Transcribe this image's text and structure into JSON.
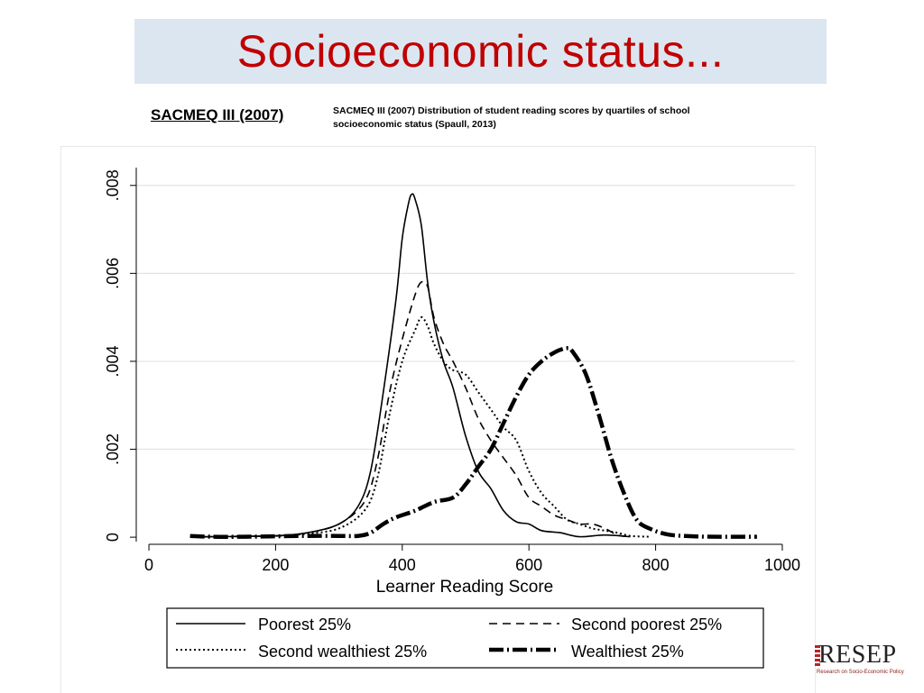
{
  "slide": {
    "title": "Socioeconomic status...",
    "subtitle": "SACMEQ III (2007)",
    "caption": "SACMEQ III (2007) Distribution of student reading scores by quartiles of school socioeconomic status (Spaull, 2013)"
  },
  "logo": {
    "text": "RESEP",
    "tagline": "Research on Socio-Economic Policy"
  },
  "chart_data": {
    "type": "line",
    "title": "",
    "xlabel": "Learner Reading Score",
    "ylabel": "",
    "xlim": [
      -20,
      1020
    ],
    "ylim": [
      -0.0001,
      0.0082
    ],
    "x_ticks": [
      0,
      200,
      400,
      600,
      800,
      1000
    ],
    "x_tick_labels": [
      "0",
      "200",
      "400",
      "600",
      "800",
      "1000"
    ],
    "y_ticks": [
      0,
      0.002,
      0.004,
      0.006,
      0.008
    ],
    "y_tick_labels": [
      "0",
      ".002",
      ".004",
      ".006",
      ".008"
    ],
    "grid": true,
    "legend_position": "bottom",
    "series": [
      {
        "name": "Poorest 25%",
        "style": "solid",
        "points": [
          [
            65,
            1e-05
          ],
          [
            100,
            1e-05
          ],
          [
            150,
            2e-05
          ],
          [
            200,
            3e-05
          ],
          [
            250,
            0.0001
          ],
          [
            300,
            0.0003
          ],
          [
            330,
            0.0007
          ],
          [
            350,
            0.0015
          ],
          [
            370,
            0.0033
          ],
          [
            390,
            0.0054
          ],
          [
            400,
            0.0068
          ],
          [
            410,
            0.0076
          ],
          [
            415,
            0.0078
          ],
          [
            420,
            0.0077
          ],
          [
            430,
            0.0071
          ],
          [
            440,
            0.0058
          ],
          [
            450,
            0.0049
          ],
          [
            465,
            0.004
          ],
          [
            480,
            0.0034
          ],
          [
            500,
            0.0023
          ],
          [
            520,
            0.0015
          ],
          [
            540,
            0.0011
          ],
          [
            560,
            0.0006
          ],
          [
            580,
            0.00035
          ],
          [
            600,
            0.0003
          ],
          [
            620,
            0.00015
          ],
          [
            650,
            0.0001
          ],
          [
            680,
            1e-05
          ],
          [
            720,
            5e-05
          ],
          [
            760,
            1e-05
          ]
        ]
      },
      {
        "name": "Second poorest 25%",
        "style": "dashed",
        "points": [
          [
            65,
            1e-05
          ],
          [
            100,
            1e-05
          ],
          [
            150,
            2e-05
          ],
          [
            200,
            3e-05
          ],
          [
            250,
            0.0001
          ],
          [
            300,
            0.0003
          ],
          [
            340,
            0.0008
          ],
          [
            360,
            0.0017
          ],
          [
            380,
            0.0033
          ],
          [
            400,
            0.0045
          ],
          [
            420,
            0.0055
          ],
          [
            430,
            0.0058
          ],
          [
            440,
            0.0057
          ],
          [
            450,
            0.005
          ],
          [
            465,
            0.0044
          ],
          [
            480,
            0.004
          ],
          [
            500,
            0.0034
          ],
          [
            520,
            0.0027
          ],
          [
            540,
            0.0022
          ],
          [
            560,
            0.0018
          ],
          [
            580,
            0.0014
          ],
          [
            600,
            0.0009
          ],
          [
            620,
            0.0007
          ],
          [
            640,
            0.0005
          ],
          [
            660,
            0.0004
          ],
          [
            680,
            0.0003
          ],
          [
            700,
            0.0003
          ],
          [
            720,
            0.0002
          ],
          [
            740,
            5e-05
          ],
          [
            760,
            1e-05
          ]
        ]
      },
      {
        "name": "Second wealthiest 25%",
        "style": "dotted",
        "points": [
          [
            65,
            1e-05
          ],
          [
            100,
            1e-05
          ],
          [
            150,
            2e-05
          ],
          [
            200,
            3e-05
          ],
          [
            250,
            8e-05
          ],
          [
            300,
            0.0002
          ],
          [
            340,
            0.0006
          ],
          [
            360,
            0.0013
          ],
          [
            380,
            0.0028
          ],
          [
            400,
            0.004
          ],
          [
            420,
            0.0047
          ],
          [
            430,
            0.005
          ],
          [
            440,
            0.0048
          ],
          [
            450,
            0.0044
          ],
          [
            465,
            0.004
          ],
          [
            480,
            0.0038
          ],
          [
            500,
            0.0037
          ],
          [
            520,
            0.0033
          ],
          [
            540,
            0.0029
          ],
          [
            560,
            0.0025
          ],
          [
            580,
            0.0022
          ],
          [
            600,
            0.0015
          ],
          [
            620,
            0.001
          ],
          [
            640,
            0.0007
          ],
          [
            660,
            0.0004
          ],
          [
            680,
            0.0003
          ],
          [
            700,
            0.0002
          ],
          [
            720,
            0.00015
          ],
          [
            740,
            0.0001
          ],
          [
            760,
            3e-05
          ],
          [
            790,
            1e-05
          ]
        ]
      },
      {
        "name": "Wealthiest 25%",
        "style": "dashdot",
        "points": [
          [
            65,
            3e-05
          ],
          [
            100,
            1e-05
          ],
          [
            150,
            1e-05
          ],
          [
            200,
            2e-05
          ],
          [
            250,
            3e-05
          ],
          [
            300,
            3e-05
          ],
          [
            330,
            3e-05
          ],
          [
            350,
            0.0001
          ],
          [
            370,
            0.0003
          ],
          [
            390,
            0.00045
          ],
          [
            420,
            0.0006
          ],
          [
            450,
            0.0008
          ],
          [
            480,
            0.0009
          ],
          [
            500,
            0.0012
          ],
          [
            520,
            0.0016
          ],
          [
            540,
            0.002
          ],
          [
            560,
            0.0026
          ],
          [
            580,
            0.0032
          ],
          [
            600,
            0.0037
          ],
          [
            620,
            0.004
          ],
          [
            640,
            0.0042
          ],
          [
            660,
            0.0043
          ],
          [
            670,
            0.0042
          ],
          [
            690,
            0.0037
          ],
          [
            710,
            0.0028
          ],
          [
            730,
            0.0018
          ],
          [
            750,
            0.001
          ],
          [
            770,
            0.0004
          ],
          [
            790,
            0.0002
          ],
          [
            820,
            6e-05
          ],
          [
            860,
            2e-05
          ],
          [
            900,
            1e-05
          ],
          [
            960,
            1e-05
          ]
        ]
      }
    ]
  }
}
